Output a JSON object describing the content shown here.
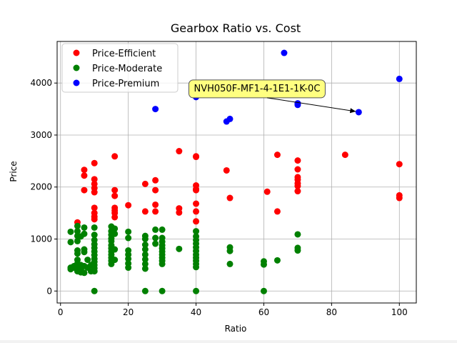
{
  "chart_data": {
    "type": "scatter",
    "title": "Gearbox Ratio vs. Cost",
    "xlabel": "Ratio",
    "ylabel": "Price",
    "xlim": [
      -1,
      105
    ],
    "ylim": [
      -230,
      4800
    ],
    "xticks": [
      0,
      20,
      40,
      60,
      80,
      100
    ],
    "yticks": [
      0,
      1000,
      2000,
      3000,
      4000
    ],
    "grid": true,
    "legend_position": "upper-left",
    "series": [
      {
        "name": "Price-Efficient",
        "color": "#ff0000",
        "points": [
          [
            5,
            1320
          ],
          [
            7,
            2330
          ],
          [
            7,
            2220
          ],
          [
            7,
            1940
          ],
          [
            10,
            2460
          ],
          [
            10,
            2150
          ],
          [
            10,
            2060
          ],
          [
            10,
            1980
          ],
          [
            10,
            1900
          ],
          [
            10,
            1600
          ],
          [
            10,
            1500
          ],
          [
            10,
            1430
          ],
          [
            10,
            1380
          ],
          [
            16,
            2590
          ],
          [
            16,
            1940
          ],
          [
            16,
            1830
          ],
          [
            16,
            1600
          ],
          [
            16,
            1550
          ],
          [
            16,
            1500
          ],
          [
            16,
            1420
          ],
          [
            20,
            1650
          ],
          [
            25,
            2060
          ],
          [
            25,
            1530
          ],
          [
            28,
            2130
          ],
          [
            28,
            1940
          ],
          [
            28,
            1660
          ],
          [
            28,
            1530
          ],
          [
            35,
            2690
          ],
          [
            35,
            1590
          ],
          [
            35,
            1510
          ],
          [
            40,
            2590
          ],
          [
            40,
            2580
          ],
          [
            40,
            2030
          ],
          [
            40,
            1960
          ],
          [
            40,
            1940
          ],
          [
            40,
            1680
          ],
          [
            40,
            1530
          ],
          [
            40,
            1340
          ],
          [
            49,
            2320
          ],
          [
            50,
            1790
          ],
          [
            61,
            1910
          ],
          [
            64,
            2620
          ],
          [
            64,
            1530
          ],
          [
            70,
            2510
          ],
          [
            70,
            2340
          ],
          [
            70,
            2190
          ],
          [
            70,
            2140
          ],
          [
            70,
            2070
          ],
          [
            70,
            2020
          ],
          [
            70,
            1920
          ],
          [
            84,
            2620
          ],
          [
            100,
            2440
          ],
          [
            100,
            1840
          ],
          [
            100,
            1790
          ]
        ]
      },
      {
        "name": "Price-Moderate",
        "color": "#008000",
        "points": [
          [
            3,
            1140
          ],
          [
            3,
            940
          ],
          [
            3,
            450
          ],
          [
            3,
            420
          ],
          [
            4,
            480
          ],
          [
            4,
            450
          ],
          [
            5,
            1250
          ],
          [
            5,
            1150
          ],
          [
            5,
            1060
          ],
          [
            5,
            960
          ],
          [
            5,
            780
          ],
          [
            5,
            720
          ],
          [
            5,
            600
          ],
          [
            5,
            530
          ],
          [
            5,
            440
          ],
          [
            5,
            380
          ],
          [
            6,
            1050
          ],
          [
            6,
            500
          ],
          [
            6,
            420
          ],
          [
            6,
            360
          ],
          [
            7,
            1220
          ],
          [
            7,
            1100
          ],
          [
            7,
            800
          ],
          [
            7,
            750
          ],
          [
            7,
            480
          ],
          [
            7,
            350
          ],
          [
            8,
            600
          ],
          [
            8,
            450
          ],
          [
            9,
            500
          ],
          [
            9,
            380
          ],
          [
            10,
            1220
          ],
          [
            10,
            1080
          ],
          [
            10,
            980
          ],
          [
            10,
            900
          ],
          [
            10,
            830
          ],
          [
            10,
            760
          ],
          [
            10,
            690
          ],
          [
            10,
            620
          ],
          [
            10,
            560
          ],
          [
            10,
            500
          ],
          [
            10,
            440
          ],
          [
            10,
            380
          ],
          [
            10,
            0
          ],
          [
            15,
            1240
          ],
          [
            15,
            1150
          ],
          [
            15,
            1080
          ],
          [
            15,
            1010
          ],
          [
            15,
            960
          ],
          [
            15,
            880
          ],
          [
            15,
            820
          ],
          [
            15,
            760
          ],
          [
            15,
            700
          ],
          [
            15,
            640
          ],
          [
            15,
            580
          ],
          [
            15,
            520
          ],
          [
            16,
            1200
          ],
          [
            16,
            1100
          ],
          [
            16,
            800
          ],
          [
            16,
            600
          ],
          [
            20,
            1140
          ],
          [
            20,
            1020
          ],
          [
            20,
            780
          ],
          [
            20,
            700
          ],
          [
            20,
            620
          ],
          [
            20,
            530
          ],
          [
            20,
            450
          ],
          [
            25,
            1060
          ],
          [
            25,
            1000
          ],
          [
            25,
            890
          ],
          [
            25,
            800
          ],
          [
            25,
            700
          ],
          [
            25,
            610
          ],
          [
            25,
            520
          ],
          [
            25,
            430
          ],
          [
            25,
            0
          ],
          [
            28,
            1180
          ],
          [
            28,
            1020
          ],
          [
            28,
            910
          ],
          [
            30,
            1180
          ],
          [
            30,
            1020
          ],
          [
            30,
            950
          ],
          [
            30,
            880
          ],
          [
            30,
            820
          ],
          [
            30,
            760
          ],
          [
            30,
            700
          ],
          [
            30,
            640
          ],
          [
            30,
            580
          ],
          [
            30,
            520
          ],
          [
            30,
            0
          ],
          [
            35,
            810
          ],
          [
            40,
            1150
          ],
          [
            40,
            1050
          ],
          [
            40,
            980
          ],
          [
            40,
            910
          ],
          [
            40,
            840
          ],
          [
            40,
            770
          ],
          [
            40,
            700
          ],
          [
            40,
            640
          ],
          [
            40,
            580
          ],
          [
            40,
            520
          ],
          [
            40,
            460
          ],
          [
            40,
            0
          ],
          [
            50,
            840
          ],
          [
            50,
            770
          ],
          [
            50,
            520
          ],
          [
            60,
            570
          ],
          [
            60,
            510
          ],
          [
            60,
            0
          ],
          [
            64,
            590
          ],
          [
            70,
            1090
          ],
          [
            70,
            830
          ],
          [
            70,
            780
          ]
        ]
      },
      {
        "name": "Price-Premium",
        "color": "#0000ff",
        "points": [
          [
            28,
            3500
          ],
          [
            40,
            3730
          ],
          [
            49,
            3260
          ],
          [
            50,
            3310
          ],
          [
            66,
            4580
          ],
          [
            70,
            3610
          ],
          [
            70,
            3580
          ],
          [
            88,
            3440
          ],
          [
            100,
            4080
          ]
        ]
      }
    ],
    "annotation": {
      "text": "NVH050F-MF1-4-1E1-1K-0C",
      "point": [
        88,
        3440
      ],
      "text_position": [
        58,
        3840
      ],
      "box_color": "#ffff80"
    }
  }
}
